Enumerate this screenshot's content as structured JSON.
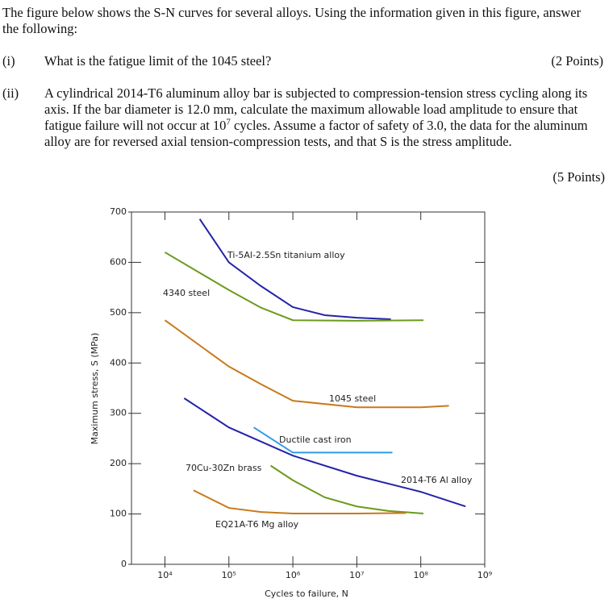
{
  "document": {
    "intro": "The figure below shows the S-N curves for several alloys.  Using the information given in this figure, answer the following:",
    "questions": [
      {
        "number": "(i)",
        "text": "What is the fatigue limit of the 1045 steel?",
        "points": "(2 Points)"
      },
      {
        "number": "(ii)",
        "text_before": "A cylindrical 2014-T6 aluminum alloy bar is subjected to compression-tension stress cycling along its axis.  If the bar diameter is 12.0 mm, calculate the maximum allowable load amplitude to ensure that fatigue failure will not occur at 10",
        "exponent": "7",
        "text_after": " cycles.  Assume a factor of safety of 3.0, the data for the aluminum alloy are for reversed axial tension-compression tests, and that S is the stress amplitude.",
        "points": "(5 Points)"
      }
    ]
  },
  "chart_data": {
    "type": "line",
    "x_label": "Cycles to failure, N",
    "y_label": "Maximum stress, S (MPa)",
    "xscale": "log",
    "xlim": [
      3000,
      1000000000
    ],
    "ylim": [
      0,
      700
    ],
    "xticks": [
      {
        "value": 10000,
        "label": "10⁴"
      },
      {
        "value": 100000,
        "label": "10⁵"
      },
      {
        "value": 1000000,
        "label": "10⁶"
      },
      {
        "value": 10000000,
        "label": "10⁷"
      },
      {
        "value": 100000000,
        "label": "10⁸"
      },
      {
        "value": 1000000000,
        "label": "10⁹"
      }
    ],
    "yticks": [
      0,
      100,
      200,
      300,
      400,
      500,
      600,
      700
    ],
    "grid": false,
    "series": [
      {
        "name": "Ti-5Al-2.5Sn titanium alloy",
        "color": "#2424a8",
        "x": [
          35000,
          100000,
          316000,
          1000000,
          3160000,
          10000000,
          34000000
        ],
        "values": [
          686,
          600,
          553,
          511,
          495,
          490,
          487
        ]
      },
      {
        "name": "4340 steel",
        "color": "#6b9a1c",
        "x": [
          10000,
          100000,
          316000,
          1000000,
          10000000,
          110000000
        ],
        "values": [
          620,
          545,
          510,
          485,
          484,
          485
        ]
      },
      {
        "name": "1045 steel",
        "color": "#c8791c",
        "x": [
          10000,
          100000,
          316000,
          1000000,
          10000000,
          100000000,
          275000000
        ],
        "values": [
          485,
          393,
          358,
          325,
          312,
          312,
          315
        ]
      },
      {
        "name": "Ductile cast iron",
        "color": "#2e9be8",
        "x": [
          245000,
          1000000,
          36000000
        ],
        "values": [
          272,
          222,
          222
        ]
      },
      {
        "name": "70Cu-30Zn brass",
        "color": "#6b9a1c",
        "x": [
          450000,
          1000000,
          3160000,
          10000000,
          31600000,
          110000000
        ],
        "values": [
          196,
          167,
          133,
          115,
          106,
          101
        ]
      },
      {
        "name": "2014-T6 Al alloy",
        "color": "#2424a8",
        "x": [
          20000,
          100000,
          1000000,
          10000000,
          100000000,
          500000000
        ],
        "values": [
          330,
          272,
          216,
          176,
          144,
          115
        ]
      },
      {
        "name": "EQ21A-T6 Mg alloy",
        "color": "#c8791c",
        "x": [
          28000,
          100000,
          316000,
          1000000,
          10000000,
          59000000
        ],
        "values": [
          147,
          112,
          104,
          101,
          101,
          102
        ]
      }
    ]
  }
}
